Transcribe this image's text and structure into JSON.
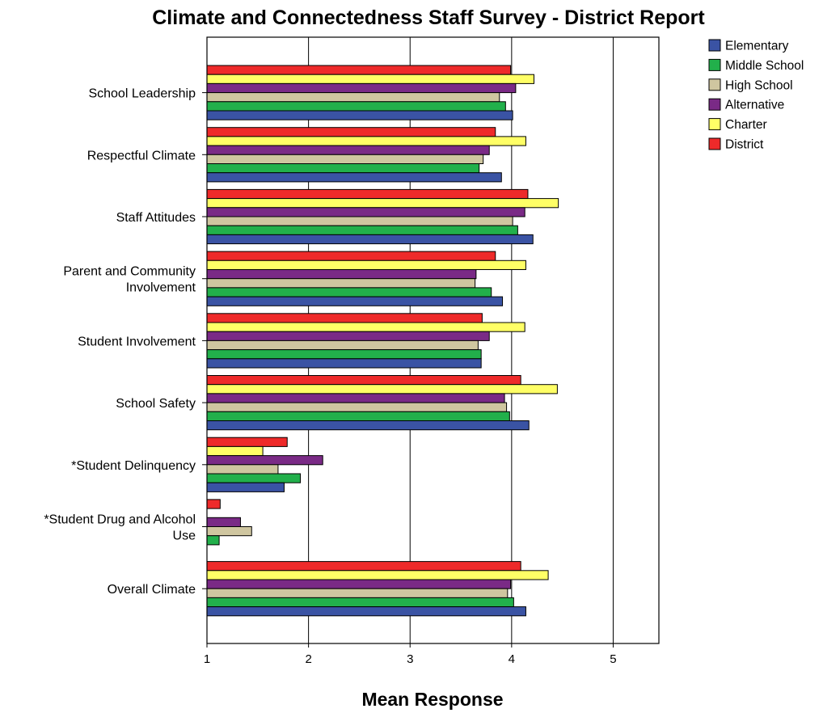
{
  "chart_data": {
    "type": "bar",
    "orientation": "horizontal",
    "title": "Climate and Connectedness Staff Survey  - District Report",
    "xlabel": "Mean Response",
    "ylabel": "",
    "xlim": [
      1,
      5.45
    ],
    "xticks": [
      1,
      2,
      3,
      4,
      5
    ],
    "grid": true,
    "legend_position": "top-right",
    "categories": [
      [
        "School Leadership"
      ],
      [
        "Respectful Climate"
      ],
      [
        "Staff Attitudes"
      ],
      [
        "Parent and Community",
        "Involvement"
      ],
      [
        "Student Involvement"
      ],
      [
        "School Safety"
      ],
      [
        "*Student Delinquency"
      ],
      [
        "*Student Drug and Alcohol",
        "Use"
      ],
      [
        "Overall Climate"
      ]
    ],
    "series": [
      {
        "name": "Elementary",
        "color": "#3a53a4",
        "values": [
          4.01,
          3.9,
          4.21,
          3.91,
          3.7,
          4.17,
          1.76,
          1.0,
          4.14
        ]
      },
      {
        "name": "Middle School",
        "color": "#22b04b",
        "values": [
          3.94,
          3.68,
          4.06,
          3.8,
          3.7,
          3.98,
          1.92,
          1.12,
          4.02
        ]
      },
      {
        "name": "High School",
        "color": "#cfc6a0",
        "values": [
          3.88,
          3.72,
          4.01,
          3.64,
          3.67,
          3.95,
          1.7,
          1.44,
          3.96
        ]
      },
      {
        "name": "Alternative",
        "color": "#7a2a86",
        "values": [
          4.04,
          3.78,
          4.13,
          3.65,
          3.78,
          3.93,
          2.14,
          1.33,
          3.99
        ]
      },
      {
        "name": "Charter",
        "color": "#ffff66",
        "values": [
          4.22,
          4.14,
          4.46,
          4.14,
          4.13,
          4.45,
          1.55,
          1.0,
          4.36
        ]
      },
      {
        "name": "District",
        "color": "#ee2a2a",
        "values": [
          3.99,
          3.84,
          4.16,
          3.84,
          3.71,
          4.09,
          1.79,
          1.13,
          4.09
        ]
      }
    ]
  }
}
